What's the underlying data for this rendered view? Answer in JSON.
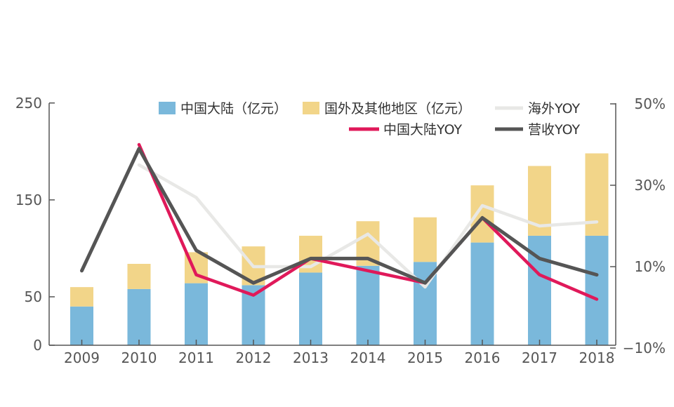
{
  "chart_data": {
    "type": "bar",
    "categories": [
      "2009",
      "2010",
      "2011",
      "2012",
      "2013",
      "2014",
      "2015",
      "2016",
      "2017",
      "2018"
    ],
    "bar_series": [
      {
        "name": "中国大陆（亿元）",
        "color": "#7ab8db",
        "values": [
          40,
          58,
          64,
          62,
          75,
          82,
          86,
          106,
          113,
          113
        ]
      },
      {
        "name": "国外及其他地区（亿元）",
        "color": "#f2d589",
        "values": [
          20,
          26,
          32,
          40,
          38,
          46,
          46,
          59,
          72,
          85
        ]
      }
    ],
    "line_series": [
      {
        "name": "海外YOY",
        "color": "#e8e8e6",
        "values": [
          null,
          35,
          27,
          10,
          10,
          18,
          5,
          25,
          20,
          21
        ]
      },
      {
        "name": "中国大陆YOY",
        "color": "#e0195a",
        "values": [
          null,
          40,
          8,
          3,
          12,
          9,
          6,
          22,
          8,
          2
        ]
      },
      {
        "name": "营收YOY",
        "color": "#555555",
        "values": [
          9,
          39,
          14,
          6,
          12,
          12,
          6,
          22,
          12,
          8
        ]
      }
    ],
    "left_axis": {
      "ticks": [
        "0",
        "50",
        "150",
        "250"
      ],
      "tick_values": [
        0,
        50,
        150,
        250
      ],
      "range": [
        0,
        250
      ]
    },
    "right_axis": {
      "ticks": [
        "−10%",
        "10%",
        "30%",
        "50%"
      ],
      "tick_values": [
        -10,
        10,
        30,
        50
      ],
      "range": [
        -10,
        50
      ]
    },
    "legend": [
      "中国大陆（亿元）",
      "国外及其他地区（亿元）",
      "海外YOY",
      "中国大陆YOY",
      "营收YOY"
    ]
  }
}
